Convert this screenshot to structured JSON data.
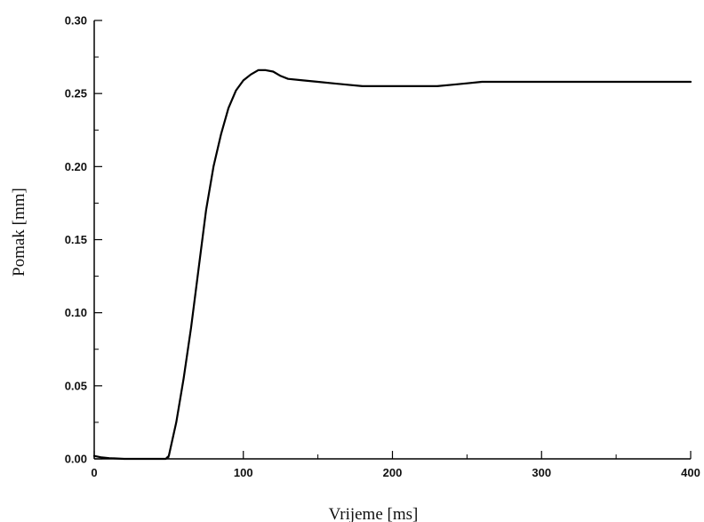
{
  "chart_data": {
    "type": "line",
    "title": "",
    "xlabel": "Vrijeme [ms]",
    "ylabel": "Pomak [mm]",
    "xlim": [
      0,
      400
    ],
    "ylim": [
      0,
      0.3
    ],
    "x_ticks": [
      "0",
      "100",
      "200",
      "300",
      "400"
    ],
    "y_ticks": [
      "0.00",
      "0.05",
      "0.10",
      "0.15",
      "0.20",
      "0.25",
      "0.30"
    ],
    "grid": false,
    "legend": "none",
    "series": [
      {
        "color": "#000000",
        "x": [
          0,
          5,
          10,
          20,
          30,
          40,
          48,
          50,
          55,
          60,
          65,
          70,
          75,
          80,
          85,
          90,
          95,
          100,
          105,
          110,
          115,
          120,
          125,
          130,
          140,
          150,
          160,
          170,
          180,
          190,
          200,
          210,
          220,
          230,
          240,
          250,
          260,
          270,
          280,
          300,
          320,
          340,
          360,
          380,
          400
        ],
        "y": [
          0.002,
          0.001,
          0.0005,
          0.0,
          0.0,
          0.0,
          0.0,
          0.002,
          0.025,
          0.055,
          0.09,
          0.13,
          0.17,
          0.2,
          0.222,
          0.24,
          0.252,
          0.259,
          0.263,
          0.266,
          0.266,
          0.265,
          0.262,
          0.26,
          0.259,
          0.258,
          0.257,
          0.256,
          0.255,
          0.255,
          0.255,
          0.255,
          0.255,
          0.255,
          0.256,
          0.257,
          0.258,
          0.258,
          0.258,
          0.258,
          0.258,
          0.258,
          0.258,
          0.258,
          0.258
        ]
      }
    ]
  }
}
